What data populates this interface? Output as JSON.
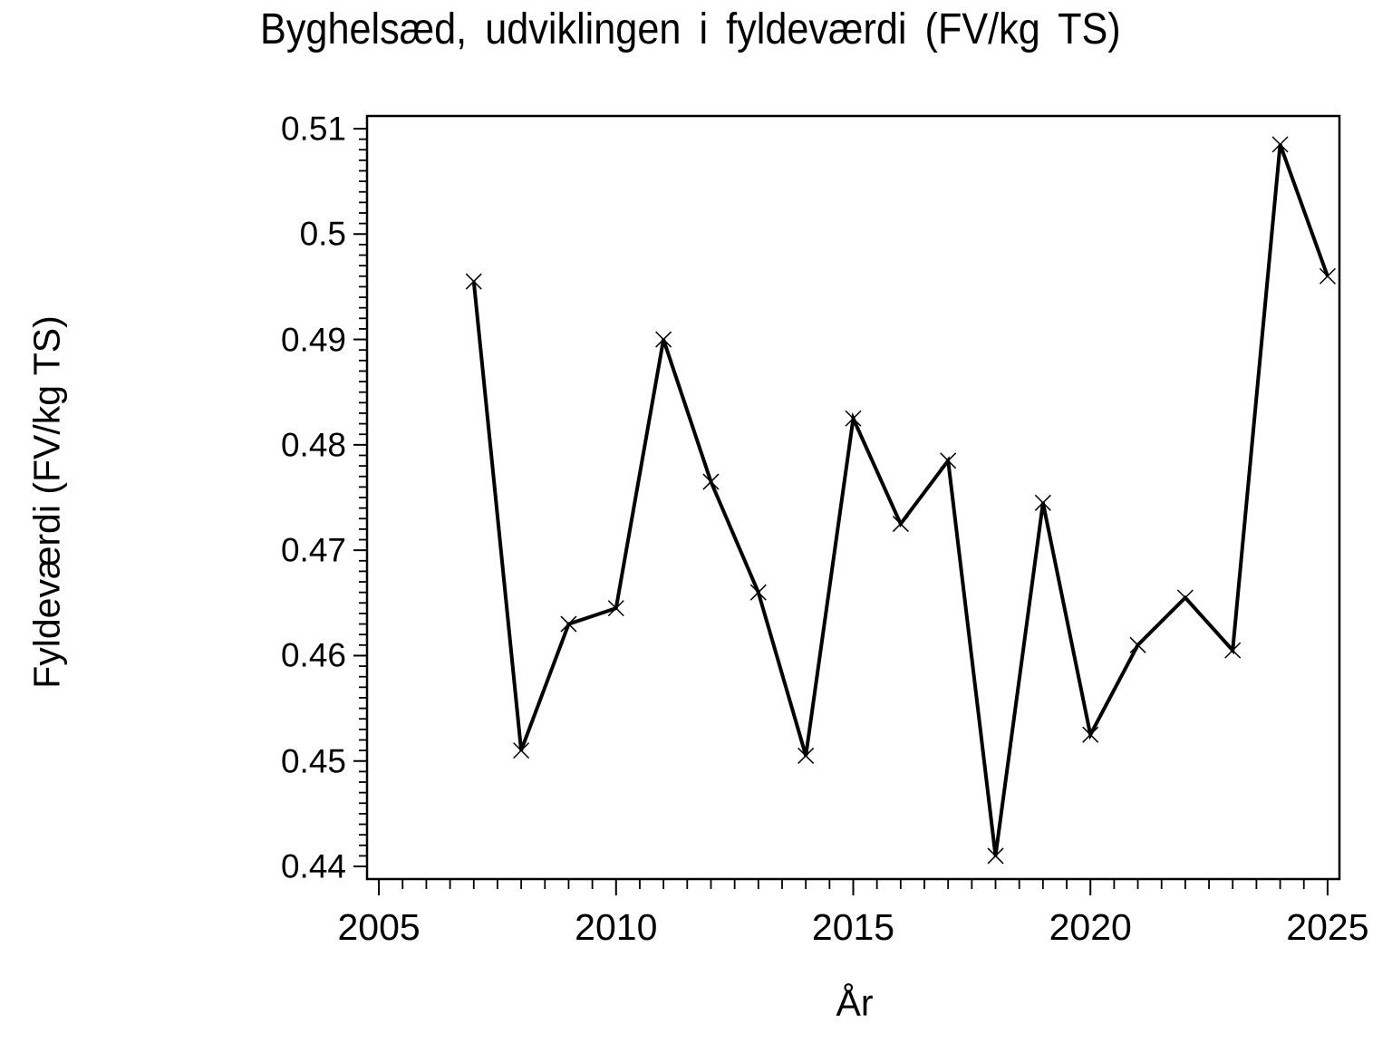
{
  "title": "Byghelsæd, udviklingen i fyldeværdi (FV/kg TS)",
  "x_axis_label": "År",
  "y_axis_label": "Fyldeværdi (FV/kg TS)",
  "chart_data": {
    "type": "line",
    "title": "Byghelsæd, udviklingen i fyldeværdi (FV/kg TS)",
    "xlabel": "År",
    "ylabel": "Fyldeværdi (FV/kg TS)",
    "x": [
      2007,
      2008,
      2009,
      2010,
      2011,
      2012,
      2013,
      2014,
      2015,
      2016,
      2017,
      2018,
      2019,
      2020,
      2021,
      2022,
      2023,
      2024,
      2025
    ],
    "values": [
      0.4955,
      0.451,
      0.463,
      0.4645,
      0.49,
      0.4765,
      0.466,
      0.4505,
      0.4825,
      0.4725,
      0.4785,
      0.441,
      0.4745,
      0.4525,
      0.461,
      0.4655,
      0.4605,
      0.5085,
      0.496
    ],
    "series_name": "Fyldeværdi (FV/kg TS)",
    "xlim": [
      2004.75,
      2025.25
    ],
    "ylim": [
      0.4388,
      0.5112
    ],
    "x_major_ticks": [
      "2005",
      "2010",
      "2015",
      "2020",
      "2025"
    ],
    "y_major_ticks": [
      "0.51",
      "0.5",
      "0.49",
      "0.48",
      "0.47",
      "0.46",
      "0.45",
      "0.44"
    ],
    "x_minor_tick_step": 0.5,
    "y_minor_tick_step": 0.001,
    "marker": "x-cross",
    "line_color": "#000000",
    "background_color": "#ffffff",
    "grid": false,
    "legend_position": "none"
  }
}
